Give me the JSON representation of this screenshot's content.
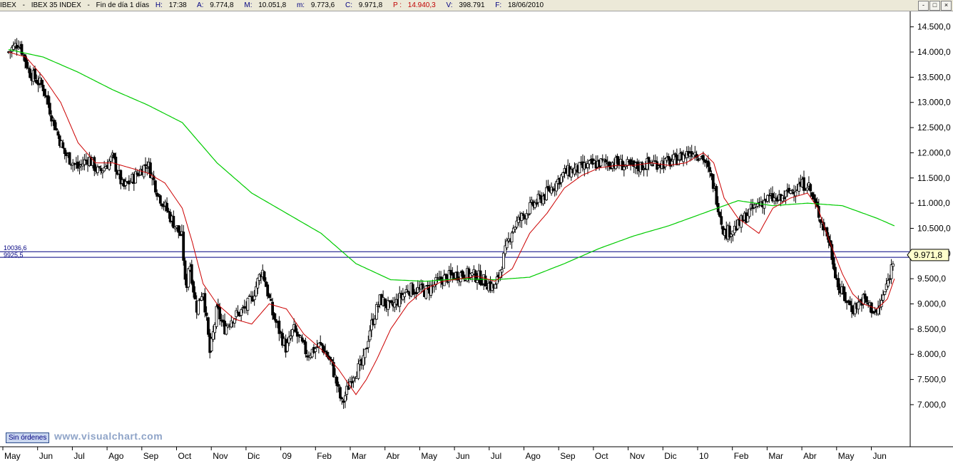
{
  "header": {
    "symbol": "IBEX",
    "name": "IBEX 35 INDEX",
    "timeframe": "Fin de día 1 días",
    "h_label": "H:",
    "h_value": "17:38",
    "a_label": "A:",
    "a_value": "9.774,8",
    "m_upper_label": "M:",
    "m_upper_value": "10.051,8",
    "m_lower_label": "m:",
    "m_lower_value": "9.773,6",
    "c_label": "C:",
    "c_value": "9.971,8",
    "p_label": "P :",
    "p_value": "14.940,3",
    "v_label": "V:",
    "v_value": "398.791",
    "f_label": "F:",
    "f_value": "18/06/2010"
  },
  "window_buttons": [
    "-",
    "□",
    "×"
  ],
  "colors": {
    "background": "#ffffff",
    "price": "#000000",
    "ma_short": "#cc0000",
    "ma_long": "#00cc00",
    "hline": "#000080",
    "last_badge": "#ffffcc"
  },
  "footer": {
    "orders_button": "Sin órdenes",
    "watermark": "www.visualchart.com"
  },
  "chart_data": {
    "type": "candlestick",
    "title": "IBEX - IBEX 35 INDEX",
    "y_ticks": [
      "14.500,0",
      "14.000,0",
      "13.500,0",
      "13.000,0",
      "12.500,0",
      "12.000,0",
      "11.500,0",
      "11.000,0",
      "10.500,0",
      "10.000,0",
      "9.500,0",
      "9.000,0",
      "8.500,0",
      "8.000,0",
      "7.500,0",
      "7.000,0"
    ],
    "y_tick_values": [
      14500,
      14000,
      13500,
      13000,
      12500,
      12000,
      11500,
      11000,
      10500,
      10000,
      9500,
      9000,
      8500,
      8000,
      7500,
      7000
    ],
    "ylim": [
      6320,
      14750
    ],
    "x_ticks": [
      "May",
      "Jun",
      "Jul",
      "Ago",
      "Sep",
      "Oct",
      "Nov",
      "Dic",
      "09",
      "Feb",
      "Mar",
      "Abr",
      "May",
      "Jun",
      "Jul",
      "Ago",
      "Sep",
      "Oct",
      "Nov",
      "Dic",
      "10",
      "Feb",
      "Mar",
      "Abr",
      "May",
      "Jun"
    ],
    "x_tick_index": [
      0,
      1,
      2,
      3,
      4,
      5,
      6,
      7,
      8,
      9,
      10,
      11,
      12,
      13,
      14,
      15,
      16,
      17,
      18,
      19,
      20,
      21,
      22,
      23,
      24,
      25
    ],
    "xlim_months": [
      0,
      25.6
    ],
    "grid": false,
    "price_months": [
      0,
      0.3,
      0.6,
      1,
      1.3,
      1.6,
      2,
      2.3,
      2.6,
      3,
      3.3,
      3.6,
      4,
      4.3,
      4.6,
      5,
      5.1,
      5.2,
      5.4,
      5.6,
      5.8,
      6,
      6.2,
      6.4,
      6.6,
      6.8,
      7,
      7.3,
      7.6,
      8,
      8.2,
      8.6,
      9,
      9.3,
      9.6,
      9.9,
      10.2,
      10.4,
      10.7,
      11,
      11.5,
      12,
      12.5,
      13,
      13.5,
      14,
      14.2,
      14.5,
      15,
      15.5,
      16,
      16.5,
      17,
      17.5,
      18,
      18.5,
      19,
      19.3,
      19.7,
      20,
      20.3,
      20.6,
      20.9,
      21,
      21.3,
      21.6,
      21.9,
      22.2,
      22.6,
      23,
      23.2,
      23.6,
      23.9,
      24,
      24.3,
      24.6,
      25,
      25.3,
      25.5
    ],
    "price_close": [
      14000,
      14200,
      13600,
      13300,
      12600,
      12000,
      11700,
      11900,
      11600,
      11900,
      11300,
      11500,
      11800,
      11200,
      10800,
      10300,
      9200,
      9900,
      8900,
      9300,
      8000,
      8900,
      8500,
      8700,
      8800,
      8900,
      9100,
      9700,
      8800,
      8100,
      8500,
      8000,
      8200,
      7800,
      7000,
      7600,
      7800,
      8500,
      9100,
      8900,
      9300,
      9250,
      9500,
      9600,
      9550,
      9300,
      9800,
      10500,
      10900,
      11200,
      11600,
      11700,
      11800,
      11800,
      11700,
      11800,
      11800,
      11900,
      12050,
      11900,
      11350,
      10400,
      10500,
      10550,
      10800,
      11000,
      11100,
      11050,
      11300,
      11400,
      11000,
      10300,
      9300,
      9200,
      8900,
      9100,
      8800,
      9400,
      9971.8
    ],
    "ma_short_months": [
      0,
      0.5,
      1,
      1.5,
      2,
      2.5,
      3,
      3.5,
      4,
      4.5,
      5,
      5.3,
      5.6,
      6,
      6.5,
      7,
      7.5,
      8,
      8.5,
      9,
      9.5,
      10,
      10.3,
      10.6,
      11,
      11.5,
      12,
      12.5,
      13,
      13.5,
      14,
      14.5,
      15,
      15.5,
      16,
      16.5,
      17,
      17.5,
      18,
      18.5,
      19,
      19.5,
      20,
      20.3,
      20.6,
      21,
      21.3,
      21.6,
      22,
      22.5,
      23,
      23.3,
      23.6,
      24,
      24.3,
      24.6,
      25,
      25.3,
      25.5
    ],
    "ma_short_values": [
      14000,
      13900,
      13500,
      13000,
      12200,
      11800,
      11800,
      11700,
      11600,
      11400,
      10900,
      10200,
      9400,
      9000,
      8700,
      8600,
      9000,
      8900,
      8400,
      8100,
      7700,
      7200,
      7500,
      7900,
      8500,
      9000,
      9300,
      9450,
      9500,
      9550,
      9450,
      9700,
      10400,
      10800,
      11300,
      11550,
      11700,
      11750,
      11750,
      11800,
      11750,
      11800,
      12000,
      11800,
      11100,
      10700,
      10550,
      10400,
      10900,
      11100,
      11200,
      10900,
      10300,
      9600,
      9200,
      9000,
      8900,
      9100,
      9500
    ],
    "ma_long_months": [
      0,
      1,
      2,
      3,
      4,
      5,
      6,
      7,
      8,
      9,
      10,
      11,
      12,
      13,
      14,
      15,
      16,
      17,
      18,
      19,
      20,
      21,
      22,
      23,
      24,
      25,
      25.5
    ],
    "ma_long_values": [
      14050,
      13900,
      13600,
      13250,
      12950,
      12600,
      11800,
      11200,
      10800,
      10400,
      9800,
      9480,
      9450,
      9500,
      9480,
      9530,
      9800,
      10100,
      10350,
      10550,
      10800,
      11050,
      10950,
      11000,
      10950,
      10700,
      10550
    ],
    "hlines": [
      {
        "value": 10036.6,
        "label": "10036,6"
      },
      {
        "value": 9925.5,
        "label": "9925,5"
      }
    ],
    "last_value_label": "9.971,8",
    "last_value": 9971.8
  }
}
